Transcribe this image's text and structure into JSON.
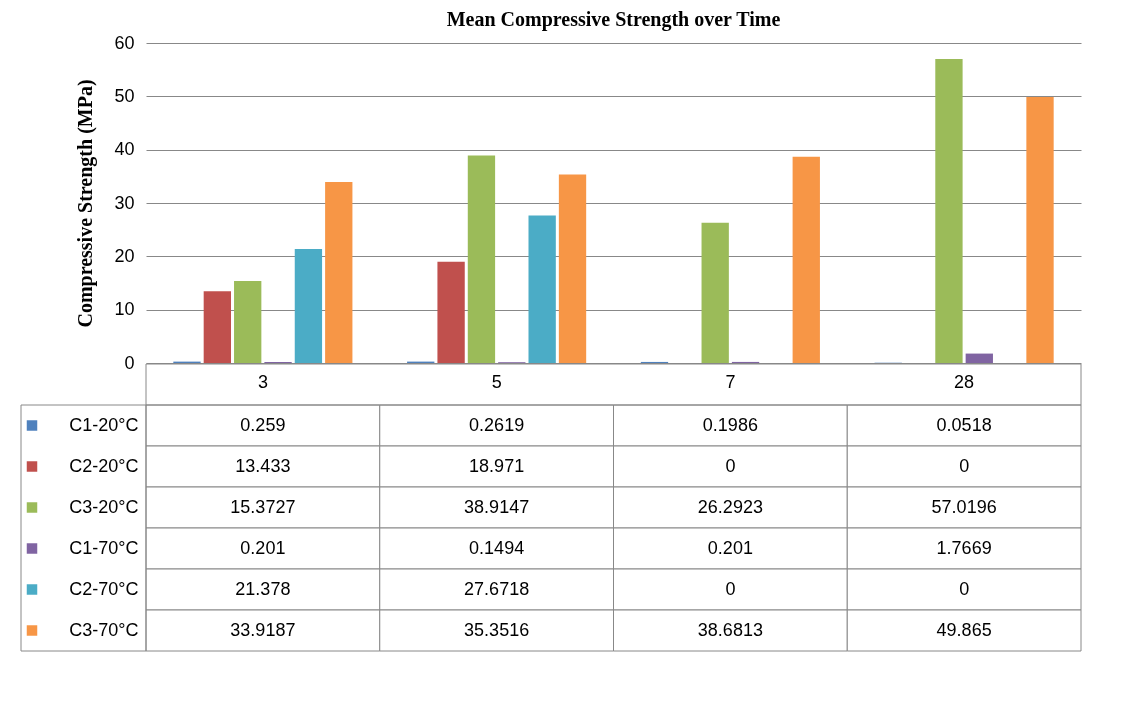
{
  "chart_data": {
    "type": "bar",
    "title": "Mean Compressive Strength over Time",
    "ylabel": "Compressive Strength (MPa)",
    "categories": [
      "3",
      "5",
      "7",
      "28"
    ],
    "series": [
      {
        "name": "C1-20°C",
        "color": "#4f81bd",
        "values": [
          0.259,
          0.2619,
          0.1986,
          0.0518
        ]
      },
      {
        "name": "C2-20°C",
        "color": "#c0504d",
        "values": [
          13.433,
          18.971,
          0,
          0
        ]
      },
      {
        "name": "C3-20°C",
        "color": "#9bbb59",
        "values": [
          15.3727,
          38.9147,
          26.2923,
          57.0196
        ]
      },
      {
        "name": "C1-70°C",
        "color": "#8064a2",
        "values": [
          0.201,
          0.1494,
          0.201,
          1.7669
        ]
      },
      {
        "name": "C2-70°C",
        "color": "#4bacc6",
        "values": [
          21.378,
          27.6718,
          0,
          0
        ]
      },
      {
        "name": "C3-70°C",
        "color": "#f79646",
        "values": [
          33.9187,
          35.3516,
          38.6813,
          49.865
        ]
      }
    ],
    "ylim": [
      0,
      60
    ],
    "yticks": [
      0,
      10,
      20,
      30,
      40,
      50,
      60
    ],
    "grid": "y",
    "legend": "bottom",
    "data_labels": true
  }
}
